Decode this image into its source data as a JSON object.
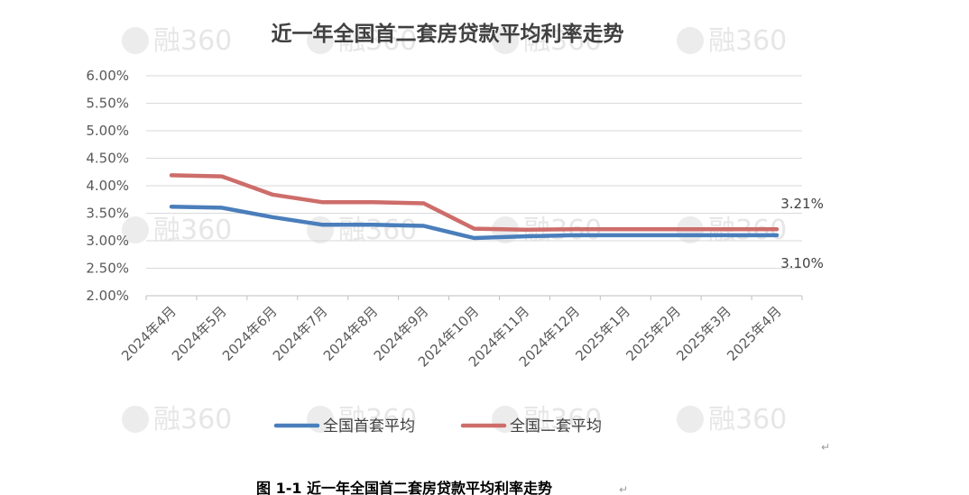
{
  "document": {
    "caption": "图 1-1  近一年全国首二套房贷款平均利率走势",
    "paragraph_mark": "↵",
    "watermark_text": "融360"
  },
  "chart_data": {
    "type": "line",
    "title": "近一年全国首二套房贷款平均利率走势",
    "xlabel": "",
    "ylabel": "",
    "categories": [
      "2024年4月",
      "2024年5月",
      "2024年6月",
      "2024年7月",
      "2024年8月",
      "2024年9月",
      "2024年10月",
      "2024年11月",
      "2024年12月",
      "2025年1月",
      "2025年2月",
      "2025年3月",
      "2025年4月"
    ],
    "y_ticks": [
      "6.00%",
      "5.50%",
      "5.00%",
      "4.50%",
      "4.00%",
      "3.50%",
      "3.00%",
      "2.50%",
      "2.00%"
    ],
    "ylim": [
      2.0,
      6.0
    ],
    "grid": true,
    "legend_position": "bottom",
    "series": [
      {
        "name": "全国首套平均",
        "color": "#4a7ebb",
        "values": [
          3.62,
          3.6,
          3.43,
          3.29,
          3.29,
          3.27,
          3.05,
          3.08,
          3.1,
          3.1,
          3.1,
          3.1,
          3.1
        ],
        "end_label": "3.10%"
      },
      {
        "name": "全国二套平均",
        "color": "#cd6d6a",
        "values": [
          4.19,
          4.17,
          3.84,
          3.7,
          3.7,
          3.68,
          3.22,
          3.2,
          3.21,
          3.21,
          3.21,
          3.21,
          3.21
        ],
        "end_label": "3.21%"
      }
    ]
  }
}
